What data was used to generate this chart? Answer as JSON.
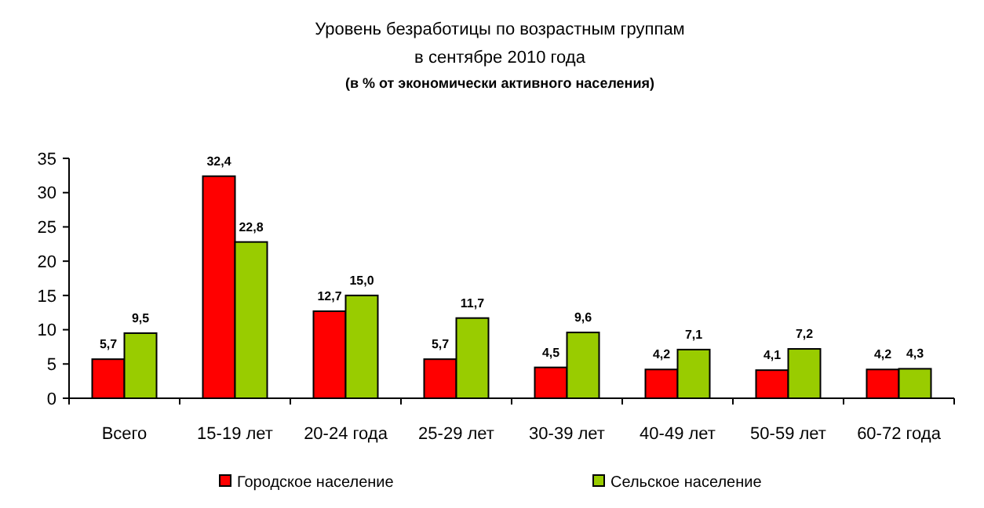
{
  "chart_data": {
    "type": "bar",
    "title": "Уровень безработицы по возрастным группам\nв сентябре 2010 года",
    "subtitle": "(в % от экономически активного населения)",
    "categories": [
      "Всего",
      "15-19 лет",
      "20-24 года",
      "25-29 лет",
      "30-39 лет",
      "40-49 лет",
      "50-59 лет",
      "60-72 года"
    ],
    "series": [
      {
        "name": "Городское население",
        "color": "#ff0000",
        "values": [
          5.7,
          32.4,
          12.7,
          5.7,
          4.5,
          4.2,
          4.1,
          4.2
        ],
        "value_labels": [
          "5,7",
          "32,4",
          "12,7",
          "5,7",
          "4,5",
          "4,2",
          "4,1",
          "4,2"
        ]
      },
      {
        "name": "Сельское население",
        "color": "#99cc00",
        "values": [
          9.5,
          22.8,
          15.0,
          11.7,
          9.6,
          7.1,
          7.2,
          4.3
        ],
        "value_labels": [
          "9,5",
          "22,8",
          "15,0",
          "11,7",
          "9,6",
          "7,1",
          "7,2",
          "4,3"
        ]
      }
    ],
    "ylim": [
      0,
      35
    ],
    "yticks": [
      0,
      5,
      10,
      15,
      20,
      25,
      30,
      35
    ],
    "grid": false,
    "legend": "bottom"
  }
}
